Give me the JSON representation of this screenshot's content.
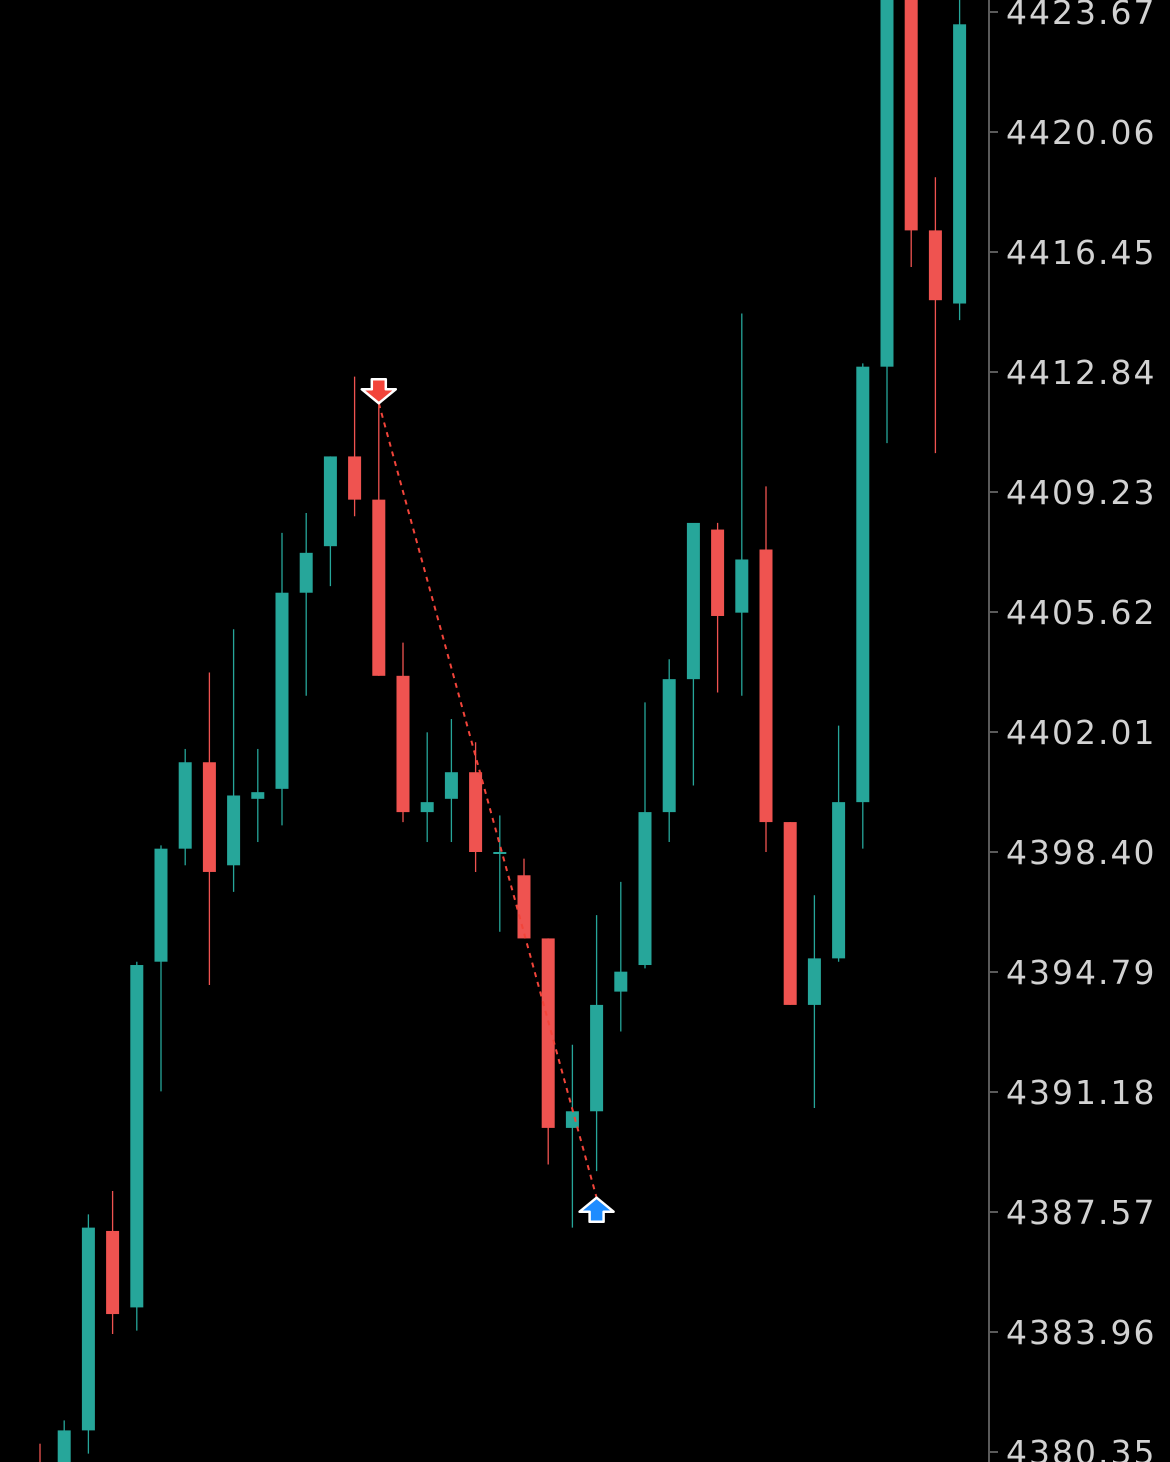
{
  "colors": {
    "background": "#000000",
    "bullish": "#26a69a",
    "bearish": "#ef5350",
    "axis_line": "#5a5a5a",
    "axis_text": "#d2d2d2",
    "sell_marker": "#f2443a",
    "buy_marker": "#1e8cff",
    "trade_line": "#f2443a"
  },
  "chart_data": {
    "type": "candlestick",
    "grid": false,
    "price_axis": {
      "position": "right",
      "labels": [
        "4423.67",
        "4420.06",
        "4416.45",
        "4412.84",
        "4409.23",
        "4405.62",
        "4402.01",
        "4398.40",
        "4394.79",
        "4391.18",
        "4387.57",
        "4383.96",
        "4380.35"
      ],
      "visible_range": [
        4380.0,
        4424.1
      ]
    },
    "candles": [
      {
        "o": 4380.0,
        "h": 4380.6,
        "l": 4379.0,
        "c": 4379.5
      },
      {
        "o": 4379.6,
        "h": 4381.3,
        "l": 4379.0,
        "c": 4381.0
      },
      {
        "o": 4381.0,
        "h": 4387.5,
        "l": 4380.3,
        "c": 4387.1
      },
      {
        "o": 4387.0,
        "h": 4388.2,
        "l": 4383.9,
        "c": 4384.5
      },
      {
        "o": 4384.7,
        "h": 4395.1,
        "l": 4384.0,
        "c": 4395.0
      },
      {
        "o": 4395.1,
        "h": 4398.6,
        "l": 4391.2,
        "c": 4398.5
      },
      {
        "o": 4398.5,
        "h": 4401.5,
        "l": 4398.0,
        "c": 4401.1
      },
      {
        "o": 4401.1,
        "h": 4403.8,
        "l": 4394.4,
        "c": 4397.8
      },
      {
        "o": 4398.0,
        "h": 4405.1,
        "l": 4397.2,
        "c": 4400.1
      },
      {
        "o": 4400.0,
        "h": 4401.5,
        "l": 4398.7,
        "c": 4400.2
      },
      {
        "o": 4400.3,
        "h": 4408.0,
        "l": 4399.2,
        "c": 4406.2
      },
      {
        "o": 4406.2,
        "h": 4408.6,
        "l": 4403.1,
        "c": 4407.4
      },
      {
        "o": 4407.6,
        "h": 4410.3,
        "l": 4406.4,
        "c": 4410.3
      },
      {
        "o": 4410.3,
        "h": 4412.7,
        "l": 4408.5,
        "c": 4409.0
      },
      {
        "o": 4409.0,
        "h": 4412.2,
        "l": 4403.7,
        "c": 4403.7
      },
      {
        "o": 4403.7,
        "h": 4404.7,
        "l": 4399.3,
        "c": 4399.6
      },
      {
        "o": 4399.6,
        "h": 4402.0,
        "l": 4398.7,
        "c": 4399.9
      },
      {
        "o": 4400.0,
        "h": 4402.4,
        "l": 4398.7,
        "c": 4400.8
      },
      {
        "o": 4400.8,
        "h": 4401.7,
        "l": 4397.8,
        "c": 4398.4
      },
      {
        "o": 4398.4,
        "h": 4399.5,
        "l": 4396.0,
        "c": 4398.4
      },
      {
        "o": 4397.7,
        "h": 4398.2,
        "l": 4395.9,
        "c": 4395.8
      },
      {
        "o": 4395.8,
        "h": 4395.8,
        "l": 4389.0,
        "c": 4390.1
      },
      {
        "o": 4390.1,
        "h": 4392.6,
        "l": 4387.1,
        "c": 4390.6
      },
      {
        "o": 4390.6,
        "h": 4396.5,
        "l": 4388.8,
        "c": 4393.8
      },
      {
        "o": 4394.2,
        "h": 4397.5,
        "l": 4393.0,
        "c": 4394.8
      },
      {
        "o": 4395.0,
        "h": 4402.9,
        "l": 4394.9,
        "c": 4399.6
      },
      {
        "o": 4399.6,
        "h": 4404.2,
        "l": 4398.7,
        "c": 4403.6
      },
      {
        "o": 4403.6,
        "h": 4408.2,
        "l": 4400.4,
        "c": 4408.3
      },
      {
        "o": 4408.1,
        "h": 4408.3,
        "l": 4403.2,
        "c": 4405.5
      },
      {
        "o": 4405.6,
        "h": 4414.6,
        "l": 4403.1,
        "c": 4407.2
      },
      {
        "o": 4407.5,
        "h": 4409.4,
        "l": 4398.4,
        "c": 4399.3
      },
      {
        "o": 4399.3,
        "h": 4399.3,
        "l": 4393.8,
        "c": 4393.8
      },
      {
        "o": 4393.8,
        "h": 4397.1,
        "l": 4390.7,
        "c": 4395.2
      },
      {
        "o": 4395.2,
        "h": 4402.2,
        "l": 4395.1,
        "c": 4399.9
      },
      {
        "o": 4399.9,
        "h": 4413.1,
        "l": 4398.5,
        "c": 4413.0
      },
      {
        "o": 4413.0,
        "h": 4424.1,
        "l": 4410.7,
        "c": 4424.1
      },
      {
        "o": 4424.1,
        "h": 4424.1,
        "l": 4416.0,
        "c": 4417.1
      },
      {
        "o": 4417.1,
        "h": 4418.7,
        "l": 4410.4,
        "c": 4415.0
      },
      {
        "o": 4414.9,
        "h": 4424.1,
        "l": 4414.4,
        "c": 4423.3
      }
    ],
    "trades": [
      {
        "side": "sell",
        "candle_index": 14,
        "price": 4411.9
      },
      {
        "side": "buy",
        "candle_index": 23,
        "price": 4388.0
      }
    ]
  }
}
